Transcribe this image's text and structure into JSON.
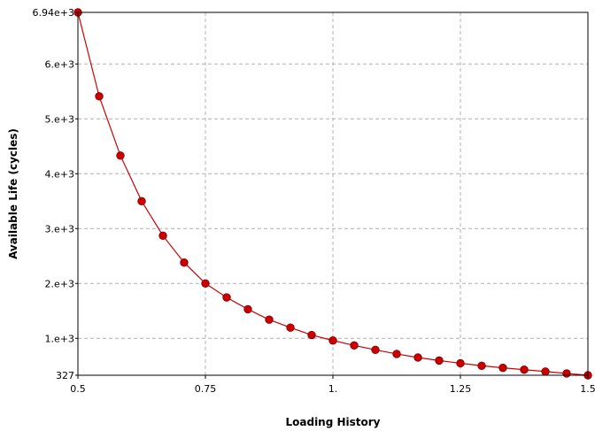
{
  "colors": {
    "series": "#cc0000",
    "marker_outline": "#7a0000",
    "grid": "#b0b0b0",
    "axis": "#000000"
  },
  "chart_data": {
    "type": "line",
    "title": "",
    "xlabel": "Loading History",
    "ylabel": "Available Life (cycles)",
    "xlim": [
      0.5,
      1.5
    ],
    "ylim": [
      327,
      6940
    ],
    "x_ticks": [
      0.5,
      0.75,
      1.0,
      1.25,
      1.5
    ],
    "x_tick_labels": [
      "0.5",
      "0.75",
      "1.",
      "1.25",
      "1.5"
    ],
    "y_ticks": [
      327,
      1000,
      2000,
      3000,
      4000,
      5000,
      6000,
      6940
    ],
    "y_tick_labels": [
      "327",
      "1.e+3",
      "2.e+3",
      "3.e+3",
      "4.e+3",
      "5.e+3",
      "6.e+3",
      "6.94e+3"
    ],
    "grid": true,
    "grid_style": "dashed",
    "legend": "none",
    "marker": "circle",
    "series": [
      {
        "x": [
          0.5,
          0.5417,
          0.5833,
          0.625,
          0.6667,
          0.7083,
          0.75,
          0.7917,
          0.8333,
          0.875,
          0.9167,
          0.9583,
          1.0,
          1.0417,
          1.0833,
          1.125,
          1.1667,
          1.2083,
          1.25,
          1.2917,
          1.3333,
          1.375,
          1.4167,
          1.4583,
          1.5
        ],
        "y": [
          6940,
          5410,
          4330,
          3500,
          2870,
          2380,
          2000,
          1745,
          1530,
          1340,
          1195,
          1060,
          960,
          870,
          790,
          715,
          650,
          595,
          545,
          500,
          462,
          428,
          395,
          360,
          327
        ]
      }
    ]
  }
}
